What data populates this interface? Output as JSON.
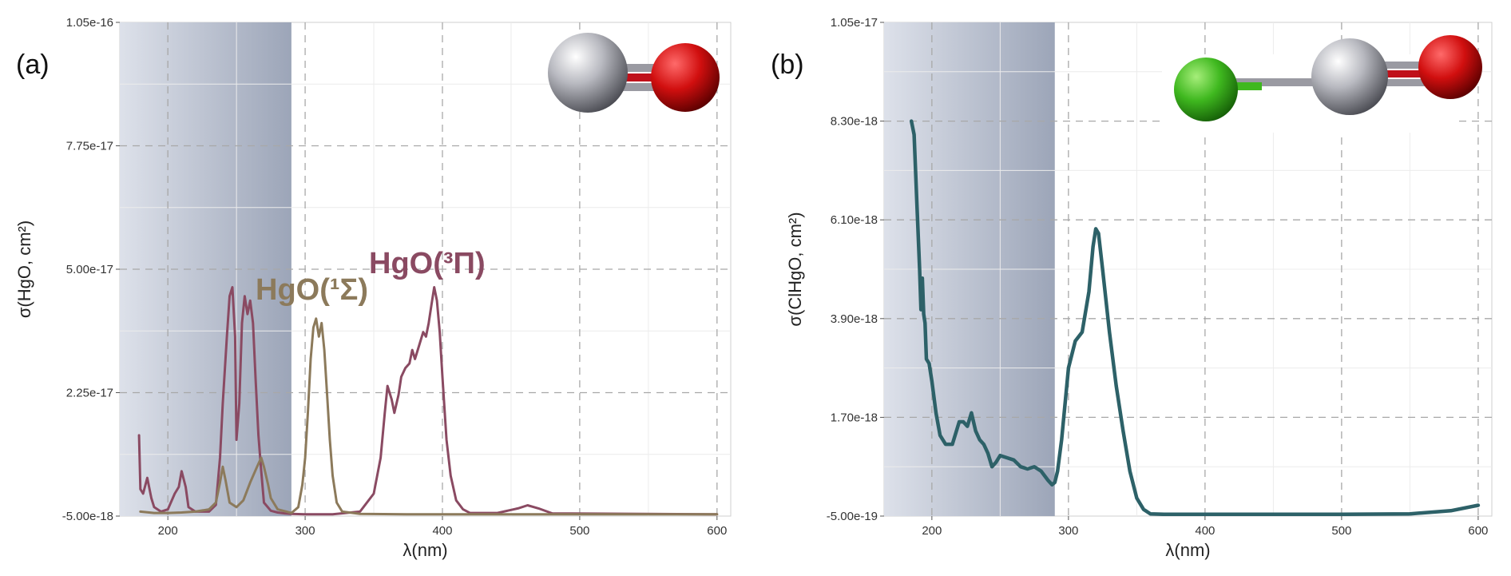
{
  "chart_data": [
    {
      "type": "line",
      "panel_label": "(a)",
      "xlabel": "λ(nm)",
      "ylabel": "σ(HgO, cm²)",
      "xlim": [
        165,
        610
      ],
      "ylim": [
        -5e-18,
        1.05e-16
      ],
      "xticks": [
        200,
        300,
        400,
        500,
        600
      ],
      "xtick_labels": [
        "200",
        "300",
        "400",
        "500",
        "600"
      ],
      "yticks": [
        -5e-18,
        2.25e-17,
        5e-17,
        7.75e-17,
        1.05e-16
      ],
      "ytick_labels": [
        "-5.00e-18",
        "2.25e-17",
        "5.00e-17",
        "7.75e-17",
        "1.05e-16"
      ],
      "shaded_region": [
        165,
        290
      ],
      "grid": true,
      "annotations": [
        {
          "text": "HgO(¹Σ)",
          "color": "#8c7a5b",
          "x": 302,
          "y": 4.3e-17
        },
        {
          "text": "HgO(³Π)",
          "color": "#8a4a62",
          "x": 355,
          "y": 5.5e-17
        }
      ],
      "series": [
        {
          "color": "#8a4a62",
          "x": [
            179,
            180,
            182,
            185,
            188,
            190,
            195,
            200,
            205,
            208,
            210,
            213,
            215,
            220,
            230,
            235,
            238,
            240,
            243,
            245,
            247,
            249,
            250,
            252,
            254,
            256,
            258,
            260,
            262,
            264,
            266,
            268,
            270,
            275,
            280,
            285,
            290,
            300,
            320,
            340,
            350,
            355,
            358,
            360,
            363,
            365,
            368,
            370,
            373,
            376,
            378,
            380,
            383,
            386,
            388,
            390,
            392,
            394,
            396,
            398,
            400,
            403,
            406,
            410,
            415,
            420,
            440,
            455,
            462,
            470,
            480,
            600
          ],
          "y": [
            1.3e-17,
            1e-18,
            0,
            3.5e-18,
            -1e-18,
            -3e-18,
            -4e-18,
            -3.5e-18,
            0,
            1.5e-18,
            5e-18,
            1.5e-18,
            -3e-18,
            -4e-18,
            -4e-18,
            -2.5e-18,
            8e-18,
            2e-17,
            3.5e-17,
            4.4e-17,
            4.6e-17,
            3.5e-17,
            1.2e-17,
            2e-17,
            3.8e-17,
            4.4e-17,
            4e-17,
            4.3e-17,
            3.8e-17,
            2.5e-17,
            1.3e-17,
            5e-18,
            -2e-18,
            -3.8e-18,
            -4.2e-18,
            -4.4e-18,
            -4.5e-18,
            -4.6e-18,
            -4.6e-18,
            -4e-18,
            0,
            8e-18,
            1.8e-17,
            2.4e-17,
            2.1e-17,
            1.8e-17,
            2.2e-17,
            2.6e-17,
            2.8e-17,
            2.9e-17,
            3.2e-17,
            3e-17,
            3.3e-17,
            3.6e-17,
            3.5e-17,
            3.8e-17,
            4.2e-17,
            4.6e-17,
            4.3e-17,
            3.6e-17,
            2.6e-17,
            1.2e-17,
            4e-18,
            -1.5e-18,
            -3.5e-18,
            -4.3e-18,
            -4.3e-18,
            -3.3e-18,
            -2.6e-18,
            -3.3e-18,
            -4.4e-18,
            -4.6e-18
          ]
        },
        {
          "color": "#8c7a5b",
          "x": [
            180,
            190,
            200,
            210,
            220,
            230,
            235,
            238,
            240,
            242,
            245,
            250,
            255,
            260,
            265,
            268,
            270,
            273,
            275,
            280,
            290,
            295,
            298,
            300,
            302,
            304,
            306,
            308,
            310,
            312,
            314,
            316,
            318,
            320,
            323,
            327,
            340,
            380,
            420,
            480,
            600
          ],
          "y": [
            -4e-18,
            -4.3e-18,
            -4.3e-18,
            -4.2e-18,
            -4e-18,
            -3.5e-18,
            -2e-18,
            2.5e-18,
            6e-18,
            3e-18,
            -2e-18,
            -3e-18,
            -1.5e-18,
            2.5e-18,
            6e-18,
            8e-18,
            6e-18,
            2e-18,
            -1e-18,
            -3.5e-18,
            -4.3e-18,
            -3e-18,
            2e-18,
            8e-18,
            1.8e-17,
            3e-17,
            3.7e-17,
            3.9e-17,
            3.5e-17,
            3.8e-17,
            3.2e-17,
            2.2e-17,
            1.2e-17,
            4e-18,
            -2e-18,
            -4e-18,
            -4.5e-18,
            -4.6e-18,
            -4.6e-18,
            -4.6e-18,
            -4.6e-18
          ]
        }
      ]
    },
    {
      "type": "line",
      "panel_label": "(b)",
      "xlabel": "λ(nm)",
      "ylabel": "σ(ClHgO, cm²)",
      "xlim": [
        165,
        610
      ],
      "ylim": [
        -5e-19,
        1.05e-17
      ],
      "xticks": [
        200,
        300,
        400,
        500,
        600
      ],
      "xtick_labels": [
        "200",
        "300",
        "400",
        "500",
        "600"
      ],
      "yticks": [
        -5e-19,
        1.7e-18,
        3.9e-18,
        6.1e-18,
        8.3e-18,
        1.05e-17
      ],
      "ytick_labels": [
        "-5.00e-19",
        "1.70e-18",
        "3.90e-18",
        "6.10e-18",
        "8.30e-18",
        "1.05e-17"
      ],
      "shaded_region": [
        165,
        290
      ],
      "grid": true,
      "series": [
        {
          "color": "#2d6168",
          "x": [
            185,
            187,
            189,
            191,
            192,
            193,
            194,
            195,
            196,
            198,
            200,
            203,
            206,
            210,
            215,
            220,
            223,
            226,
            229,
            232,
            235,
            238,
            241,
            244,
            247,
            250,
            255,
            260,
            265,
            270,
            275,
            280,
            285,
            288,
            290,
            292,
            295,
            300,
            305,
            310,
            315,
            318,
            320,
            322,
            325,
            330,
            335,
            340,
            345,
            350,
            355,
            360,
            370,
            380,
            400,
            450,
            500,
            550,
            580,
            600
          ],
          "y": [
            8.3e-18,
            8e-18,
            6.5e-18,
            5e-18,
            4.1e-18,
            4.8e-18,
            4e-18,
            3.8e-18,
            3e-18,
            2.9e-18,
            2.5e-18,
            1.8e-18,
            1.3e-18,
            1.1e-18,
            1.1e-18,
            1.6e-18,
            1.6e-18,
            1.5e-18,
            1.8e-18,
            1.4e-18,
            1.2e-18,
            1.1e-18,
            9e-19,
            6e-19,
            7e-19,
            8.5e-19,
            8e-19,
            7.5e-19,
            6e-19,
            5.5e-19,
            6e-19,
            5e-19,
            3e-19,
            2e-19,
            2.5e-19,
            5e-19,
            1.2e-18,
            2.8e-18,
            3.4e-18,
            3.6e-18,
            4.5e-18,
            5.5e-18,
            5.9e-18,
            5.8e-18,
            5e-18,
            3.6e-18,
            2.4e-18,
            1.4e-18,
            5e-19,
            -1e-19,
            -3.5e-19,
            -4.5e-19,
            -4.6e-19,
            -4.6e-19,
            -4.6e-19,
            -4.6e-19,
            -4.6e-19,
            -4.5e-19,
            -3.8e-19,
            -2.6e-19
          ]
        }
      ]
    }
  ]
}
